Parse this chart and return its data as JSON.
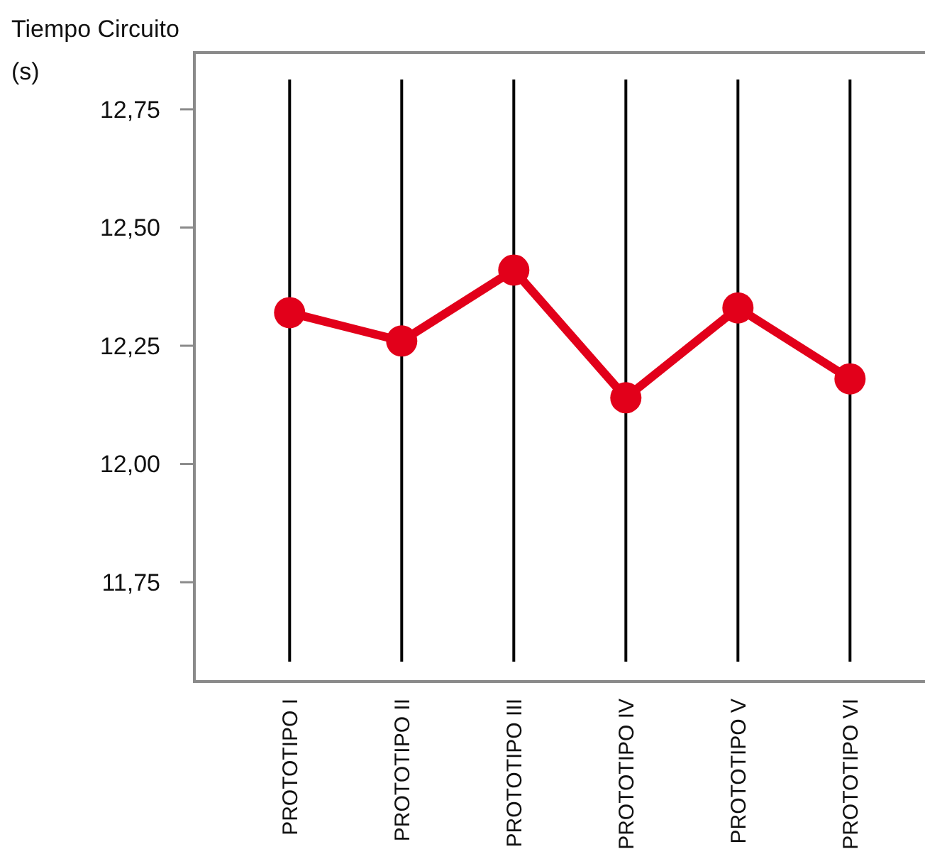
{
  "chart_data": {
    "type": "line",
    "ylabel": "Tiempo Circuito (s)",
    "categories": [
      "PROTOTIPO I",
      "PROTOTIPO II",
      "PROTOTIPO III",
      "PROTOTIPO IV",
      "PROTOTIPO V",
      "PROTOTIPO VI"
    ],
    "series": [
      {
        "color": "#e2001a",
        "values": [
          12.32,
          12.26,
          12.41,
          12.14,
          12.33,
          12.18
        ]
      }
    ],
    "ylim": [
      11.54,
      12.87
    ],
    "yticks": [
      {
        "value": 11.75,
        "label": "11,75"
      },
      {
        "value": 12,
        "label": "12,00"
      },
      {
        "value": 12.25,
        "label": "12,25"
      },
      {
        "value": 12.5,
        "label": "12,50"
      },
      {
        "value": 12.75,
        "label": "12,75"
      }
    ],
    "grid": "x",
    "marker": "circle",
    "line_style": "solid"
  }
}
